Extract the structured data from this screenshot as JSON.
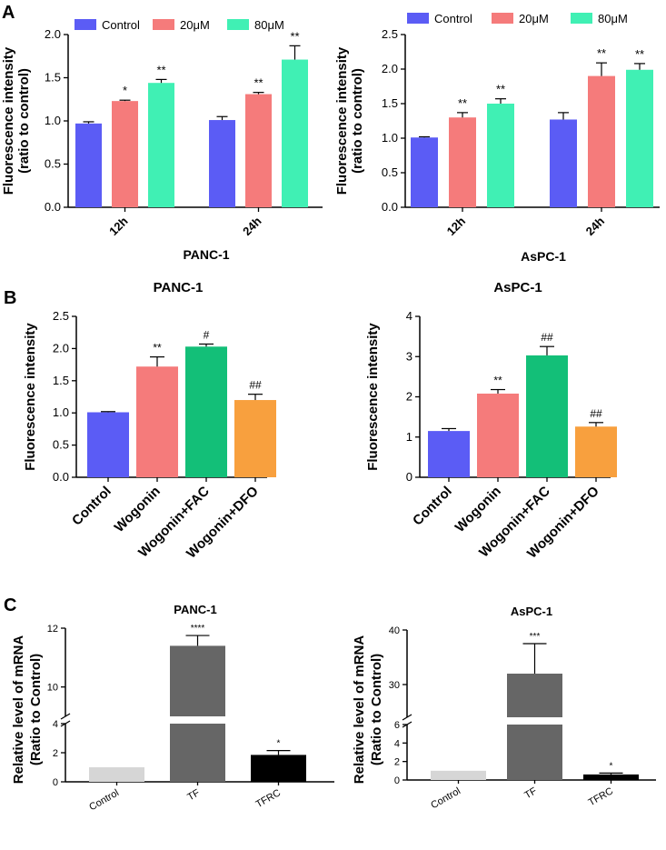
{
  "panels": [
    {
      "letter": "A"
    },
    {
      "letter": "B"
    },
    {
      "letter": "C"
    }
  ],
  "colors": {
    "control": "#5b5cf5",
    "dose20": "#f57b7b",
    "dose80": "#40f0b4",
    "wogonin": "#f57b7b",
    "fac": "#13bf78",
    "dfo": "#f8a03e",
    "qpcr_control": "#d6d6d6",
    "qpcr_tf": "#666666",
    "qpcr_tfrc": "#000000"
  },
  "chart_data": [
    {
      "id": "A1",
      "panel": "A",
      "type": "bar",
      "title": "",
      "xlabel": "PANC-1",
      "ylabel": [
        "Fluorescence intensity",
        "(ratio to control)"
      ],
      "legend": [
        "Control",
        "20μM",
        "80μM"
      ],
      "categories": [
        "12h",
        "24h"
      ],
      "ylim": [
        0,
        2.0
      ],
      "yticks": [
        "0.0",
        "0.5",
        "1.0",
        "1.5",
        "2.0"
      ],
      "series": [
        {
          "name": "Control",
          "values": [
            0.97,
            1.01
          ],
          "errors": [
            0.02,
            0.04
          ],
          "sig": [
            "",
            ""
          ]
        },
        {
          "name": "20μM",
          "values": [
            1.23,
            1.31
          ],
          "errors": [
            0.01,
            0.02
          ],
          "sig": [
            "*",
            "**"
          ]
        },
        {
          "name": "80μM",
          "values": [
            1.44,
            1.71
          ],
          "errors": [
            0.04,
            0.16
          ],
          "sig": [
            "**",
            "**"
          ]
        }
      ]
    },
    {
      "id": "A2",
      "panel": "A",
      "type": "bar",
      "title": "",
      "xlabel": "AsPC-1",
      "ylabel": [
        "Fluorescence intensity",
        "(ratio to control)"
      ],
      "legend": [
        "Control",
        "20μM",
        "80μM"
      ],
      "categories": [
        "12h",
        "24h"
      ],
      "ylim": [
        0,
        2.5
      ],
      "yticks": [
        "0.0",
        "0.5",
        "1.0",
        "1.5",
        "2.0",
        "2.5"
      ],
      "series": [
        {
          "name": "Control",
          "values": [
            1.01,
            1.27
          ],
          "errors": [
            0.01,
            0.1
          ],
          "sig": [
            "",
            ""
          ]
        },
        {
          "name": "20μM",
          "values": [
            1.3,
            1.9
          ],
          "errors": [
            0.07,
            0.19
          ],
          "sig": [
            "**",
            "**"
          ]
        },
        {
          "name": "80μM",
          "values": [
            1.5,
            1.99
          ],
          "errors": [
            0.07,
            0.09
          ],
          "sig": [
            "**",
            "**"
          ]
        }
      ]
    },
    {
      "id": "B1",
      "panel": "B",
      "type": "bar",
      "title": "PANC-1",
      "xlabel": "",
      "ylabel": [
        "Fluorescence intensity"
      ],
      "categories": [
        "Control",
        "Wogonin",
        "Wogonin+FAC",
        "Wogonin+DFO"
      ],
      "ylim": [
        0,
        2.5
      ],
      "yticks": [
        "0.0",
        "0.5",
        "1.0",
        "1.5",
        "2.0",
        "2.5"
      ],
      "values": [
        1.01,
        1.72,
        2.03,
        1.2
      ],
      "errors": [
        0.01,
        0.15,
        0.04,
        0.09
      ],
      "sig": [
        "",
        "**",
        "#",
        "##"
      ]
    },
    {
      "id": "B2",
      "panel": "B",
      "type": "bar",
      "title": "AsPC-1",
      "xlabel": "",
      "ylabel": [
        "Fluorescence intensity"
      ],
      "categories": [
        "Control",
        "Wogonin",
        "Wogonin+FAC",
        "Wogonin+DFO"
      ],
      "ylim": [
        0,
        4
      ],
      "yticks": [
        "0",
        "1",
        "2",
        "3",
        "4"
      ],
      "values": [
        1.15,
        2.08,
        3.03,
        1.26
      ],
      "errors": [
        0.06,
        0.1,
        0.22,
        0.1
      ],
      "sig": [
        "",
        "**",
        "##",
        "##"
      ]
    },
    {
      "id": "C1",
      "panel": "C",
      "type": "bar",
      "title": "PANC-1",
      "xlabel": "",
      "ylabel": [
        "Relative level of mRNA",
        "(Ratio to Control)"
      ],
      "categories": [
        "Control",
        "TF",
        "TFRC"
      ],
      "y_break": {
        "lower": [
          0,
          4
        ],
        "upper": [
          9,
          12
        ]
      },
      "yticks_lower": [
        "0",
        "2",
        "4"
      ],
      "yticks_upper": [
        "10",
        "12"
      ],
      "values": [
        1.0,
        11.4,
        1.85
      ],
      "errors": [
        0,
        0.35,
        0.3
      ],
      "sig": [
        "",
        "****",
        "*"
      ]
    },
    {
      "id": "C2",
      "panel": "C",
      "type": "bar",
      "title": "AsPC-1",
      "xlabel": "",
      "ylabel": [
        "Relative level of mRNA",
        "(Ratio to Control)"
      ],
      "categories": [
        "Control",
        "TF",
        "TFRC"
      ],
      "y_break": {
        "lower": [
          0,
          6
        ],
        "upper": [
          24,
          40
        ]
      },
      "yticks_lower": [
        "0",
        "2",
        "4",
        "6"
      ],
      "yticks_upper": [
        "30",
        "40"
      ],
      "values": [
        1.0,
        32.0,
        0.6
      ],
      "errors": [
        0,
        5.5,
        0.15
      ],
      "sig": [
        "",
        "***",
        "*"
      ]
    }
  ]
}
